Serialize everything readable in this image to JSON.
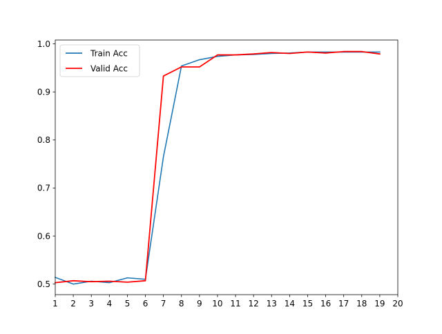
{
  "chart_data": {
    "type": "line",
    "title": "",
    "xlabel": "",
    "ylabel": "",
    "xlim": [
      1,
      20
    ],
    "ylim": [
      0.478,
      1.008
    ],
    "x_ticks": [
      1,
      2,
      3,
      4,
      5,
      6,
      7,
      8,
      9,
      10,
      11,
      12,
      13,
      14,
      15,
      16,
      17,
      18,
      19,
      20
    ],
    "y_ticks": [
      0.5,
      0.6,
      0.7,
      0.8,
      0.9,
      1.0
    ],
    "y_tick_labels": [
      "0.5",
      "0.6",
      "0.7",
      "0.8",
      "0.9",
      "1.0"
    ],
    "grid": false,
    "legend_position": "top-left",
    "x": [
      1,
      2,
      3,
      4,
      5,
      6,
      7,
      8,
      9,
      10,
      11,
      12,
      13,
      14,
      15,
      16,
      17,
      18,
      19
    ],
    "series": [
      {
        "name": "Train Acc",
        "color": "#1f77b4",
        "values": [
          0.514,
          0.5,
          0.506,
          0.503,
          0.513,
          0.51,
          0.765,
          0.954,
          0.967,
          0.974,
          0.977,
          0.978,
          0.98,
          0.981,
          0.983,
          0.983,
          0.983,
          0.983,
          0.983
        ]
      },
      {
        "name": "Valid Acc",
        "color": "#ff0000",
        "values": [
          0.503,
          0.507,
          0.505,
          0.506,
          0.504,
          0.507,
          0.933,
          0.952,
          0.952,
          0.977,
          0.977,
          0.979,
          0.982,
          0.98,
          0.983,
          0.981,
          0.984,
          0.984,
          0.979
        ]
      }
    ]
  }
}
